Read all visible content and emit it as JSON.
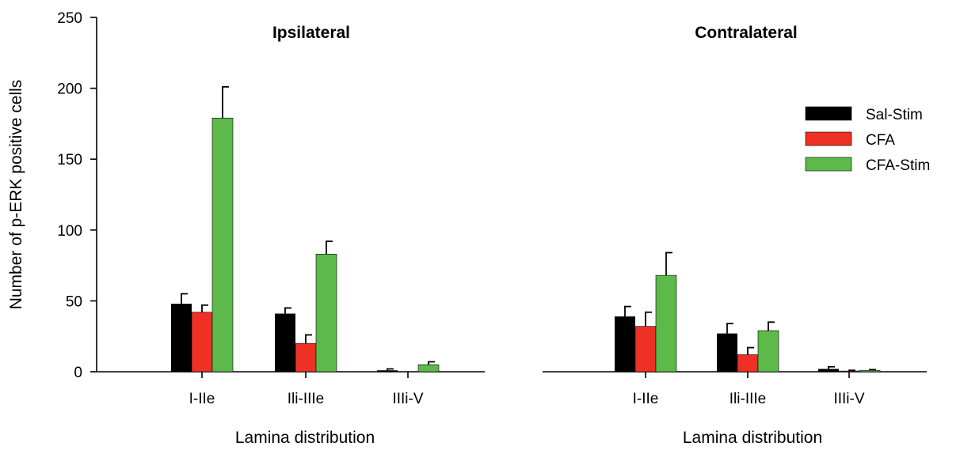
{
  "chart_data": {
    "type": "bar",
    "ylabel": "Number of p-ERK positive cells",
    "ylim": [
      0,
      250
    ],
    "yticks": [
      0,
      50,
      100,
      150,
      200,
      250
    ],
    "grid": false,
    "legend_position": "right",
    "legend": [
      {
        "name": "Sal-Stim",
        "color": "#000000"
      },
      {
        "name": "CFA",
        "color": "#ee3124"
      },
      {
        "name": "CFA-Stim",
        "color": "#5cb94a"
      }
    ],
    "panels": [
      {
        "title": "Ipsilateral",
        "xlabel": "Lamina distribution",
        "categories": [
          "I-IIe",
          "Ili-IIIe",
          "IIIi-V"
        ],
        "series": [
          {
            "name": "Sal-Stim",
            "color": "#000000",
            "values": [
              48,
              41,
              1
            ],
            "errors": [
              7,
              4,
              1
            ]
          },
          {
            "name": "CFA",
            "color": "#ee3124",
            "values": [
              42,
              20,
              0
            ],
            "errors": [
              5,
              6,
              0
            ]
          },
          {
            "name": "CFA-Stim",
            "color": "#5cb94a",
            "values": [
              179,
              83,
              5
            ],
            "errors": [
              22,
              9,
              2
            ]
          }
        ]
      },
      {
        "title": "Contralateral",
        "xlabel": "Lamina distribution",
        "categories": [
          "I-IIe",
          "Ili-IIIe",
          "IIIi-V"
        ],
        "series": [
          {
            "name": "Sal-Stim",
            "color": "#000000",
            "values": [
              39,
              27,
              2
            ],
            "errors": [
              7,
              7,
              1.5
            ]
          },
          {
            "name": "CFA",
            "color": "#ee3124",
            "values": [
              32,
              12,
              0.5
            ],
            "errors": [
              10,
              5,
              0.5
            ]
          },
          {
            "name": "CFA-Stim",
            "color": "#5cb94a",
            "values": [
              68,
              29,
              1
            ],
            "errors": [
              16,
              6,
              0.5
            ]
          }
        ]
      }
    ]
  }
}
